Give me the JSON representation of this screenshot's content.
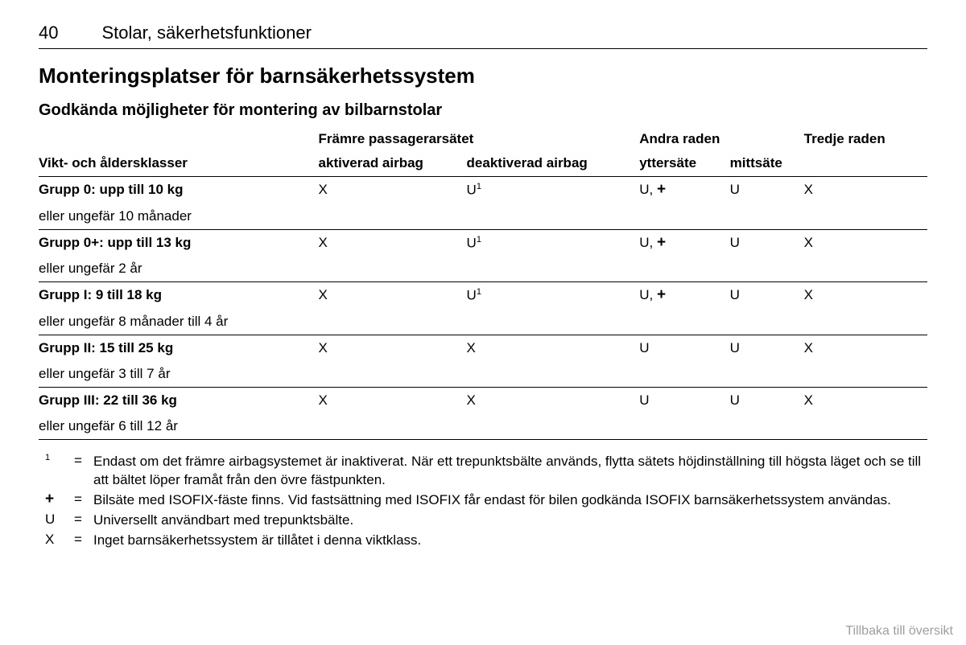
{
  "page_number": "40",
  "section_title": "Stolar, säkerhetsfunktioner",
  "main_heading": "Monteringsplatser för barnsäkerhetssystem",
  "sub_heading": "Godkända möjligheter för montering av bilbarnstolar",
  "table": {
    "header_top": {
      "col1": "",
      "front_seat": "Främre passagerarsätet",
      "second_row": "Andra raden",
      "third_row": "Tredje raden"
    },
    "header_sub": {
      "col1": "Vikt- och åldersklasser",
      "airbag_on": "aktiverad airbag",
      "airbag_off": "deaktiverad airbag",
      "outer": "yttersäte",
      "center": "mittsäte",
      "third": ""
    },
    "rows": [
      {
        "label": "Grupp 0: upp till 10 kg",
        "sub": "eller ungefär 10 månader",
        "c2": "X",
        "c3": "U¹",
        "c4": "U, +",
        "c5": "U",
        "c6": "X"
      },
      {
        "label": "Grupp 0+: upp till 13 kg",
        "sub": "eller ungefär 2 år",
        "c2": "X",
        "c3": "U¹",
        "c4": "U, +",
        "c5": "U",
        "c6": "X"
      },
      {
        "label": "Grupp I: 9 till 18 kg",
        "sub": "eller ungefär 8 månader till 4 år",
        "c2": "X",
        "c3": "U¹",
        "c4": "U, +",
        "c5": "U",
        "c6": "X"
      },
      {
        "label": "Grupp II: 15 till 25 kg",
        "sub": "eller ungefär 3 till 7 år",
        "c2": "X",
        "c3": "X",
        "c4": "U",
        "c5": "U",
        "c6": "X"
      },
      {
        "label": "Grupp III: 22 till 36 kg",
        "sub": "eller ungefär 6 till 12 år",
        "c2": "X",
        "c3": "X",
        "c4": "U",
        "c5": "U",
        "c6": "X"
      }
    ]
  },
  "legend": [
    {
      "symbol": "¹",
      "text": "Endast om det främre airbagsystemet är inaktiverat. När ett trepunktsbälte används, flytta sätets höjdinställning till högsta läget och se till att bältet löper framåt från den övre fästpunkten."
    },
    {
      "symbol": "+",
      "text": "Bilsäte med ISOFIX-fäste finns. Vid fastsättning med ISOFIX får endast för bilen godkända ISOFIX barnsäkerhetssystem användas."
    },
    {
      "symbol": "U",
      "text": "Universellt användbart med trepunktsbälte."
    },
    {
      "symbol": "X",
      "text": "Inget barnsäkerhetssystem är tillåtet i denna viktklass."
    }
  ],
  "footer_link": "Tillbaka till översikt",
  "equals": "="
}
